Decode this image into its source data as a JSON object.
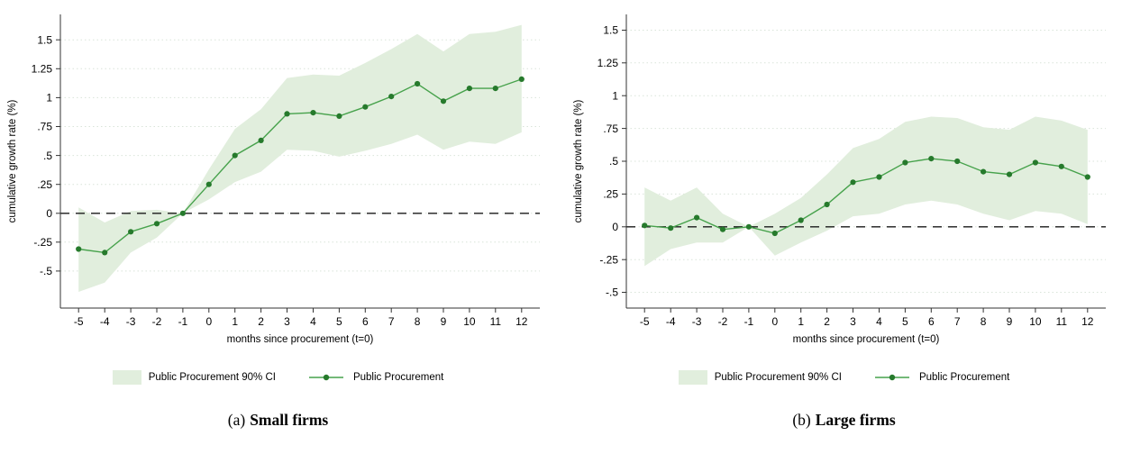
{
  "colors": {
    "line": "#47a24c",
    "dot": "#267a2c",
    "band": "#e1eedd",
    "grid": "#d9e4d9",
    "zero": "#1a1a1a",
    "axis": "#333333"
  },
  "figure": {
    "captions": [
      {
        "prefix": "(a)",
        "label": "Small firms"
      },
      {
        "prefix": "(b)",
        "label": "Large firms"
      }
    ]
  },
  "chart_data": [
    {
      "type": "line",
      "panel": "a",
      "title": "Small firms",
      "xlabel": "months since procurement (t=0)",
      "ylabel": "cumulative growth rate (%)",
      "x": [
        -5,
        -4,
        -3,
        -2,
        -1,
        0,
        1,
        2,
        3,
        4,
        5,
        6,
        7,
        8,
        9,
        10,
        11,
        12
      ],
      "series": [
        {
          "name": "Public Procurement",
          "values": [
            -0.31,
            -0.34,
            -0.16,
            -0.09,
            0,
            0.25,
            0.5,
            0.63,
            0.86,
            0.87,
            0.84,
            0.92,
            1.01,
            1.12,
            0.97,
            1.08,
            1.08,
            1.16
          ]
        }
      ],
      "ci": {
        "name": "Public Procurement 90% CI",
        "lower": [
          -0.68,
          -0.6,
          -0.34,
          -0.21,
          0,
          0.12,
          0.27,
          0.36,
          0.55,
          0.54,
          0.49,
          0.54,
          0.6,
          0.68,
          0.55,
          0.62,
          0.6,
          0.7
        ],
        "upper": [
          0.05,
          -0.08,
          0.02,
          0.03,
          0,
          0.38,
          0.73,
          0.9,
          1.17,
          1.2,
          1.19,
          1.3,
          1.42,
          1.55,
          1.4,
          1.55,
          1.57,
          1.63
        ]
      },
      "yticks": [
        -0.5,
        -0.25,
        0,
        0.25,
        0.5,
        0.75,
        1,
        1.25,
        1.5
      ],
      "ytick_labels": [
        "-.5",
        "-.25",
        "0",
        ".25",
        ".5",
        ".75",
        "1",
        "1.25",
        "1.5"
      ],
      "ylim": [
        -0.82,
        1.72
      ],
      "xlim": [
        -5.7,
        12.7
      ],
      "zero_line": true,
      "grid": true,
      "legend_position": "bottom"
    },
    {
      "type": "line",
      "panel": "b",
      "title": "Large firms",
      "xlabel": "months since procurement (t=0)",
      "ylabel": "cumulative growth rate (%)",
      "x": [
        -5,
        -4,
        -3,
        -2,
        -1,
        0,
        1,
        2,
        3,
        4,
        5,
        6,
        7,
        8,
        9,
        10,
        11,
        12
      ],
      "series": [
        {
          "name": "Public Procurement",
          "values": [
            0.01,
            -0.01,
            0.07,
            -0.02,
            0,
            -0.05,
            0.05,
            0.17,
            0.34,
            0.38,
            0.49,
            0.52,
            0.5,
            0.42,
            0.4,
            0.49,
            0.46,
            0.38
          ]
        }
      ],
      "ci": {
        "name": "Public Procurement 90% CI",
        "lower": [
          -0.3,
          -0.17,
          -0.12,
          -0.12,
          0,
          -0.22,
          -0.12,
          -0.03,
          0.08,
          0.1,
          0.17,
          0.2,
          0.17,
          0.1,
          0.05,
          0.12,
          0.1,
          0.02
        ],
        "upper": [
          0.3,
          0.2,
          0.3,
          0.1,
          0,
          0.1,
          0.22,
          0.4,
          0.6,
          0.67,
          0.8,
          0.84,
          0.83,
          0.76,
          0.74,
          0.84,
          0.81,
          0.74
        ]
      },
      "yticks": [
        -0.5,
        -0.25,
        0,
        0.25,
        0.5,
        0.75,
        1,
        1.25,
        1.5
      ],
      "ytick_labels": [
        "-.5",
        "-.25",
        "0",
        ".25",
        ".5",
        ".75",
        "1",
        "1.25",
        "1.5"
      ],
      "ylim": [
        -0.62,
        1.62
      ],
      "xlim": [
        -5.7,
        12.7
      ],
      "zero_line": true,
      "grid": true,
      "legend_position": "bottom"
    }
  ]
}
